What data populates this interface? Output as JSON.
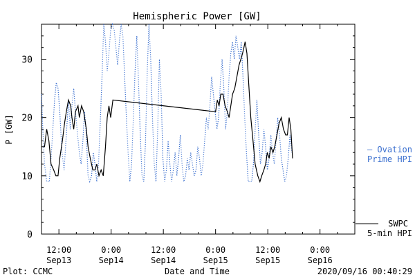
{
  "footer": {
    "left": "Plot: CCMC",
    "center": "Date and Time",
    "right": "2020/09/16 00:40:29"
  },
  "legend": {
    "ovation_line1": "— Ovation",
    "ovation_line2": "Prime HPI",
    "swpc_line1": "SWPC",
    "swpc_line2": "5-min HPI"
  },
  "colors": {
    "ovation": "#3a6fcf",
    "swpc": "#000000",
    "axis": "#000000"
  },
  "chart_data": {
    "type": "line",
    "title": "Hemispheric Power [GW]",
    "xlabel": "Date and Time",
    "ylabel": "P [GW]",
    "ylim": [
      0,
      36
    ],
    "xlim_hours": [
      -16,
      56
    ],
    "yticks": [
      0,
      10,
      20,
      30
    ],
    "xticks": [
      {
        "hour": -12,
        "line1": "12:00",
        "line2": "Sep13"
      },
      {
        "hour": 0,
        "line1": "0:00",
        "line2": "Sep14"
      },
      {
        "hour": 12,
        "line1": "12:00",
        "line2": "Sep14"
      },
      {
        "hour": 24,
        "line1": "0:00",
        "line2": "Sep15"
      },
      {
        "hour": 36,
        "line1": "12:00",
        "line2": "Sep15"
      },
      {
        "hour": 48,
        "line1": "0:00",
        "line2": "Sep16"
      }
    ],
    "series": [
      {
        "name": "SWPC 5-min HPI",
        "style": "solid",
        "points": [
          [
            -16,
            15
          ],
          [
            -15.3,
            15
          ],
          [
            -14.8,
            18
          ],
          [
            -14.3,
            16
          ],
          [
            -13.8,
            12
          ],
          [
            -13.2,
            11
          ],
          [
            -12.7,
            10
          ],
          [
            -12.2,
            10
          ],
          [
            -11.8,
            13
          ],
          [
            -11.2,
            16
          ],
          [
            -10.7,
            19
          ],
          [
            -10.3,
            21
          ],
          [
            -9.8,
            23
          ],
          [
            -9.3,
            22
          ],
          [
            -9,
            20
          ],
          [
            -8.6,
            18
          ],
          [
            -8.2,
            21
          ],
          [
            -7.6,
            22
          ],
          [
            -7.3,
            20
          ],
          [
            -6.8,
            22
          ],
          [
            -6.3,
            21
          ],
          [
            -5.7,
            18
          ],
          [
            -5.3,
            15
          ],
          [
            -4.8,
            13
          ],
          [
            -4.2,
            11
          ],
          [
            -3.7,
            11
          ],
          [
            -3.3,
            12
          ],
          [
            -2.8,
            10
          ],
          [
            -2.3,
            11
          ],
          [
            -1.8,
            10
          ],
          [
            -1.3,
            15
          ],
          [
            -0.9,
            20
          ],
          [
            -0.5,
            22
          ],
          [
            -0.1,
            20
          ],
          [
            0.4,
            23
          ],
          [
            24,
            21
          ],
          [
            24.4,
            23
          ],
          [
            24.8,
            22
          ],
          [
            25.2,
            24
          ],
          [
            25.7,
            24
          ],
          [
            26.2,
            22
          ],
          [
            26.7,
            21
          ],
          [
            27.1,
            20
          ],
          [
            27.5,
            22
          ],
          [
            27.9,
            24
          ],
          [
            28.4,
            25
          ],
          [
            28.9,
            27
          ],
          [
            29.4,
            29
          ],
          [
            29.8,
            30
          ],
          [
            30.2,
            31
          ],
          [
            30.5,
            32
          ],
          [
            30.8,
            33
          ],
          [
            31.2,
            31
          ],
          [
            31.6,
            26
          ],
          [
            32.1,
            20
          ],
          [
            32.6,
            16
          ],
          [
            33.1,
            12
          ],
          [
            33.7,
            10
          ],
          [
            34.2,
            9
          ],
          [
            34.6,
            10
          ],
          [
            35.1,
            11
          ],
          [
            35.5,
            12
          ],
          [
            35.9,
            14
          ],
          [
            36.3,
            13
          ],
          [
            36.7,
            15
          ],
          [
            37.2,
            14
          ],
          [
            37.6,
            15
          ],
          [
            38.1,
            17
          ],
          [
            38.6,
            19
          ],
          [
            39.1,
            20
          ],
          [
            39.6,
            18
          ],
          [
            40.1,
            17
          ],
          [
            40.5,
            17
          ],
          [
            40.9,
            20
          ],
          [
            41.3,
            18
          ],
          [
            41.7,
            13
          ]
        ]
      },
      {
        "name": "Ovation Prime HPI",
        "style": "dotted",
        "points": [
          [
            -16,
            24
          ],
          [
            -15.7,
            18
          ],
          [
            -15.3,
            12
          ],
          [
            -14.8,
            9
          ],
          [
            -14.2,
            9
          ],
          [
            -13.8,
            13
          ],
          [
            -13.4,
            18
          ],
          [
            -13,
            23
          ],
          [
            -12.6,
            26
          ],
          [
            -12.2,
            25
          ],
          [
            -11.8,
            21
          ],
          [
            -11.3,
            14
          ],
          [
            -10.8,
            11
          ],
          [
            -10.3,
            17
          ],
          [
            -9.8,
            23
          ],
          [
            -9.4,
            18
          ],
          [
            -9,
            22
          ],
          [
            -8.6,
            25
          ],
          [
            -8.2,
            21
          ],
          [
            -7.7,
            17
          ],
          [
            -7.3,
            14
          ],
          [
            -6.9,
            12
          ],
          [
            -6.5,
            16
          ],
          [
            -6.1,
            21
          ],
          [
            -5.7,
            17
          ],
          [
            -5.3,
            10
          ],
          [
            -4.9,
            9
          ],
          [
            -4.5,
            10
          ],
          [
            -4.1,
            14
          ],
          [
            -3.7,
            12
          ],
          [
            -3.3,
            9
          ],
          [
            -2.9,
            12
          ],
          [
            -2.5,
            19
          ],
          [
            -2.1,
            27
          ],
          [
            -1.7,
            36
          ],
          [
            -1.3,
            33
          ],
          [
            -0.9,
            28
          ],
          [
            -0.5,
            31
          ],
          [
            -0.1,
            35
          ],
          [
            0.3,
            36
          ],
          [
            0.7,
            35
          ],
          [
            1.1,
            32
          ],
          [
            1.5,
            29
          ],
          [
            1.9,
            33
          ],
          [
            2.3,
            36
          ],
          [
            2.7,
            34
          ],
          [
            3.1,
            27
          ],
          [
            3.5,
            20
          ],
          [
            3.9,
            14
          ],
          [
            4.3,
            9
          ],
          [
            4.7,
            12
          ],
          [
            5.1,
            20
          ],
          [
            5.5,
            28
          ],
          [
            5.9,
            34
          ],
          [
            6.3,
            26
          ],
          [
            6.7,
            17
          ],
          [
            7.1,
            10
          ],
          [
            7.5,
            9
          ],
          [
            7.9,
            16
          ],
          [
            8.3,
            28
          ],
          [
            8.7,
            36
          ],
          [
            9.1,
            30
          ],
          [
            9.5,
            20
          ],
          [
            9.9,
            12
          ],
          [
            10.3,
            9
          ],
          [
            10.7,
            18
          ],
          [
            11.1,
            30
          ],
          [
            11.5,
            24
          ],
          [
            11.9,
            13
          ],
          [
            12.3,
            9
          ],
          [
            12.7,
            11
          ],
          [
            13.1,
            16
          ],
          [
            13.5,
            12
          ],
          [
            13.9,
            9
          ],
          [
            14.3,
            11
          ],
          [
            14.7,
            14
          ],
          [
            15.1,
            10
          ],
          [
            15.5,
            13
          ],
          [
            15.9,
            17
          ],
          [
            16.3,
            12
          ],
          [
            16.7,
            9
          ],
          [
            17.1,
            10
          ],
          [
            17.5,
            13
          ],
          [
            17.9,
            11
          ],
          [
            18.3,
            14
          ],
          [
            18.7,
            12
          ],
          [
            19.1,
            10
          ],
          [
            19.5,
            11
          ],
          [
            19.9,
            15
          ],
          [
            20.3,
            13
          ],
          [
            20.7,
            10
          ],
          [
            21.1,
            12
          ],
          [
            21.5,
            16
          ],
          [
            21.9,
            20
          ],
          [
            22.3,
            18
          ],
          [
            22.7,
            22
          ],
          [
            23.1,
            27
          ],
          [
            23.5,
            24
          ],
          [
            23.9,
            21
          ],
          [
            24.3,
            18
          ],
          [
            24.7,
            20
          ],
          [
            25.1,
            26
          ],
          [
            25.5,
            30
          ],
          [
            25.9,
            25
          ],
          [
            26.3,
            18
          ],
          [
            26.7,
            21
          ],
          [
            27.1,
            27
          ],
          [
            27.5,
            31
          ],
          [
            27.9,
            33
          ],
          [
            28.3,
            30
          ],
          [
            28.7,
            34
          ],
          [
            29.1,
            32
          ],
          [
            29.5,
            30
          ],
          [
            29.9,
            33
          ],
          [
            30.3,
            27
          ],
          [
            30.7,
            20
          ],
          [
            31.1,
            14
          ],
          [
            31.5,
            9
          ],
          [
            31.9,
            9
          ],
          [
            32.3,
            9
          ],
          [
            32.7,
            12
          ],
          [
            33.1,
            18
          ],
          [
            33.5,
            23
          ],
          [
            33.9,
            17
          ],
          [
            34.3,
            12
          ],
          [
            34.7,
            14
          ],
          [
            35.1,
            18
          ],
          [
            35.5,
            15
          ],
          [
            35.9,
            11
          ],
          [
            36.3,
            13
          ],
          [
            36.7,
            17
          ],
          [
            37.1,
            14
          ],
          [
            37.5,
            12
          ],
          [
            37.9,
            16
          ],
          [
            38.3,
            20
          ],
          [
            38.7,
            17
          ],
          [
            39.1,
            13
          ],
          [
            39.5,
            11
          ],
          [
            39.9,
            9
          ],
          [
            40.3,
            10
          ],
          [
            40.7,
            13
          ],
          [
            41.1,
            17
          ],
          [
            41.5,
            14
          ]
        ]
      }
    ]
  }
}
